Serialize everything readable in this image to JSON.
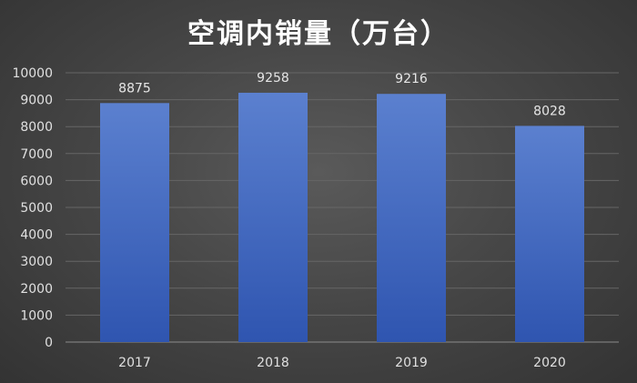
{
  "chart_data": {
    "type": "bar",
    "title": "空调内销量（万台）",
    "categories": [
      "2017",
      "2018",
      "2019",
      "2020"
    ],
    "values": [
      8875,
      9258,
      9216,
      8028
    ],
    "ylim": [
      0,
      10000
    ],
    "yticks": [
      0,
      1000,
      2000,
      3000,
      4000,
      5000,
      6000,
      7000,
      8000,
      9000,
      10000
    ],
    "grid": true,
    "legend": "none",
    "colors": {
      "bar_top": "#5b80cf",
      "bar_bottom": "#2f55b0",
      "background": "#474747",
      "grid": "#666666"
    }
  }
}
